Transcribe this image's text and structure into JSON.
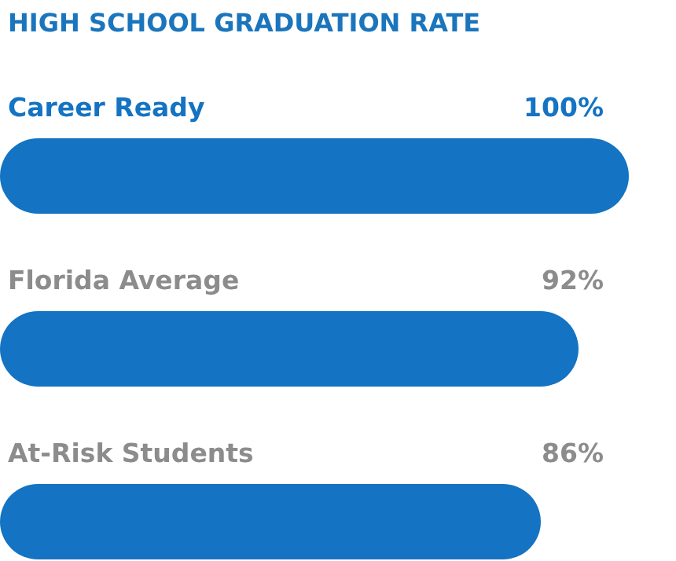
{
  "chart_data": {
    "type": "bar",
    "orientation": "horizontal",
    "title": "HIGH SCHOOL GRADUATION RATE",
    "categories": [
      "Career Ready",
      "Florida Average",
      "At-Risk Students"
    ],
    "values": [
      100,
      92,
      86
    ],
    "value_labels": [
      "100%",
      "92%",
      "86%"
    ],
    "color": "#1473c2"
  }
}
